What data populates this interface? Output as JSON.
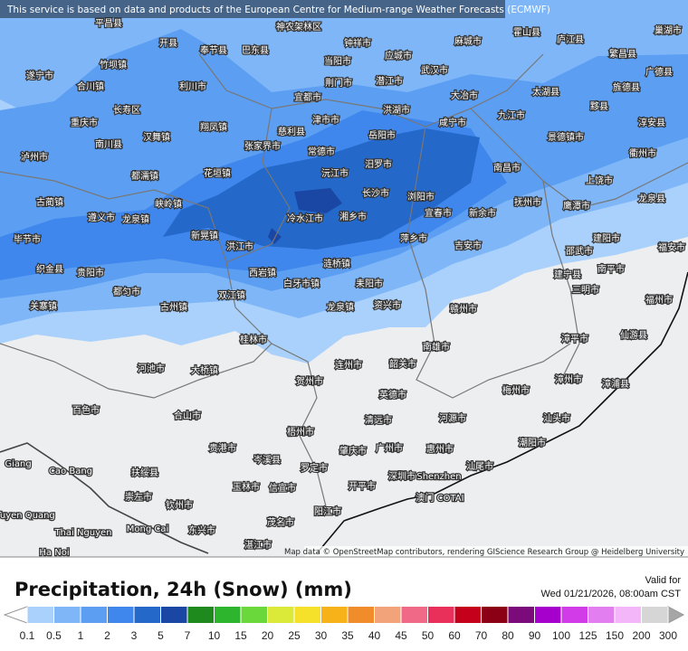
{
  "notice": "This service is based on data and products of the European Centre for Medium-range Weather Forecasts (ECMWF)",
  "attribution": "Map data © OpenStreetMap contributors, rendering GIScience Research Group @ Heidelberg University",
  "map_labels": [
    "平昌县",
    "开县",
    "奉节县",
    "巴东县",
    "神农架林区",
    "钟祥市",
    "应城市",
    "麻城市",
    "霍山县",
    "庐江县",
    "巢湖市",
    "繁昌县",
    "广德县",
    "遂宁市",
    "竹坝镇",
    "合川镇",
    "利川市",
    "当阳市",
    "荆门市",
    "潜江市",
    "武汉市",
    "宜都市",
    "大冶市",
    "太湖县",
    "旌德县",
    "黟县",
    "淳安县",
    "长寿区",
    "重庆市",
    "南川县",
    "洪湖市",
    "咸宁市",
    "九江市",
    "慈利县",
    "翔凤镇",
    "张家界市",
    "津市市",
    "岳阳市",
    "常德市",
    "汉舞镇",
    "泸州市",
    "景德镇市",
    "衢州市",
    "南昌市",
    "花垣镇",
    "都濡镇",
    "沅江市",
    "汨罗市",
    "上饶市",
    "龙泉县",
    "长沙市",
    "浏阳市",
    "抚州市",
    "鹰潭市",
    "古蔺镇",
    "峡岭镇",
    "遵义市",
    "龙泉镇",
    "冷水江市",
    "湘乡市",
    "宜春市",
    "新余市",
    "新晃镇",
    "萍乡市",
    "毕节市",
    "洪江市",
    "吉安市",
    "建阳市",
    "福安市",
    "邵武市",
    "织金县",
    "贵阳市",
    "西岩镇",
    "涟桥镇",
    "南平市",
    "建宁县",
    "都匀市",
    "白牙市镇",
    "耒阳市",
    "三明市",
    "双江镇",
    "关寨镇",
    "古州镇",
    "龙泉镇",
    "资兴市",
    "赣州市",
    "福州市",
    "漳平市",
    "桂林市",
    "南雄市",
    "仙游县",
    "河池市",
    "大桥镇",
    "连州市",
    "韶关市",
    "梅州市",
    "漳州市",
    "漳浦县",
    "贺州市",
    "英德市",
    "百色市",
    "合山市",
    "河源市",
    "清远市",
    "汕头市",
    "梧州市",
    "贵港市",
    "肇庆市",
    "广州市",
    "惠州市",
    "潮阳市",
    "扶绥县",
    "岑溪县",
    "罗定市",
    "玉林市",
    "信宜市",
    "开平市",
    "深圳市",
    "Shenzhen",
    "汕尾市",
    "Cao Bang",
    "崇左市",
    "澳门 COTAI",
    "钦州市",
    "阳江市",
    "茂名市",
    "湛江市",
    "Thai Nguyen",
    "Mong Cai",
    "东兴市",
    "Ha Noi",
    "Tuyen Quang",
    "Giang"
  ],
  "legend": {
    "title": "Precipitation, 24h (Snow) (mm)",
    "valid_label": "Valid for",
    "valid_time": "Wed 01/21/2026, 08:00am CST",
    "ticks": [
      0.1,
      0.5,
      1,
      2,
      3,
      5,
      7,
      10,
      15,
      20,
      25,
      30,
      35,
      40,
      45,
      50,
      60,
      70,
      80,
      90,
      100,
      125,
      150,
      200,
      300
    ],
    "colors": [
      "#a9d1fb",
      "#7fb6f7",
      "#5c9ff2",
      "#3f87ed",
      "#2468c9",
      "#1a47a3",
      "#1e8a1e",
      "#2db52d",
      "#6ad83a",
      "#dbe938",
      "#f5e02a",
      "#f7b21a",
      "#f08c2a",
      "#f3a37a",
      "#f06a88",
      "#e8305a",
      "#c4001a",
      "#8b0014",
      "#7b0a7b",
      "#a600cc",
      "#d23be8",
      "#e37ef0",
      "#f3b6f8",
      "#d6d6d6"
    ],
    "under_color": "#ffffff",
    "over_color": "#a6a6a6"
  }
}
